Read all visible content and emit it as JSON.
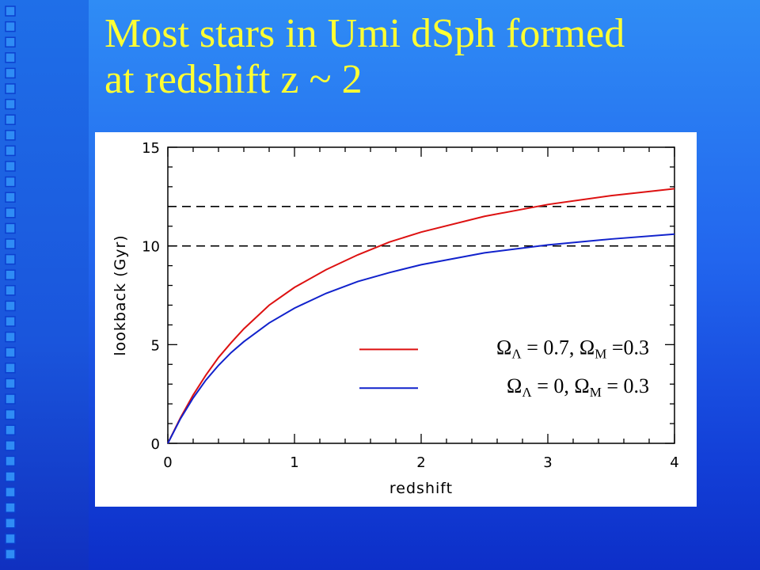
{
  "slide": {
    "title_line1": "Most stars in Umi dSph formed",
    "title_line2": "at redshift z ~ 2",
    "title_color": "#ffff33",
    "background_color": "#2266ee",
    "decoration": "column of small blue squares along left edge"
  },
  "chart_data": {
    "type": "line",
    "xlabel": "redshift",
    "ylabel": "lookback (Gyr)",
    "xlim": [
      0,
      4
    ],
    "ylim": [
      0,
      15
    ],
    "x_ticks": [
      "0",
      "1",
      "2",
      "3",
      "4"
    ],
    "y_ticks": [
      "0",
      "5",
      "10",
      "15"
    ],
    "grid": false,
    "legend_position": "lower-right",
    "reference_lines": [
      {
        "y": 10,
        "style": "dashed",
        "color": "#000000"
      },
      {
        "y": 12,
        "style": "dashed",
        "color": "#000000"
      }
    ],
    "series": [
      {
        "legend_parts": [
          "Ω",
          "Λ",
          " = 0.7, ",
          "Ω",
          "M",
          " =0.3"
        ],
        "color": "#dd1111",
        "x": [
          0,
          0.1,
          0.2,
          0.3,
          0.4,
          0.5,
          0.6,
          0.8,
          1.0,
          1.25,
          1.5,
          1.75,
          2.0,
          2.5,
          3.0,
          3.5,
          4.0
        ],
        "y": [
          0,
          1.3,
          2.45,
          3.45,
          4.35,
          5.1,
          5.8,
          7.0,
          7.9,
          8.8,
          9.55,
          10.2,
          10.7,
          11.5,
          12.1,
          12.55,
          12.9
        ]
      },
      {
        "legend_parts": [
          "Ω",
          "Λ",
          " = 0,  ",
          "Ω",
          "M",
          " = 0.3"
        ],
        "color": "#1122cc",
        "x": [
          0,
          0.1,
          0.2,
          0.3,
          0.4,
          0.5,
          0.6,
          0.8,
          1.0,
          1.25,
          1.5,
          1.75,
          2.0,
          2.5,
          3.0,
          3.5,
          4.0
        ],
        "y": [
          0,
          1.25,
          2.3,
          3.2,
          3.95,
          4.6,
          5.15,
          6.1,
          6.85,
          7.6,
          8.2,
          8.65,
          9.05,
          9.65,
          10.05,
          10.35,
          10.6
        ]
      }
    ]
  }
}
